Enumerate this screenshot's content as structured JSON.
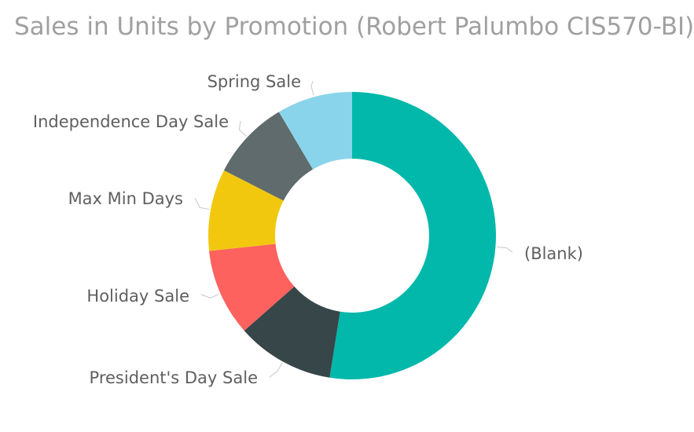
{
  "chart_data": {
    "type": "pie",
    "variant": "donut",
    "title": "Sales in Units by Promotion (Robert Palumbo CIS570-BI)",
    "legend": "none",
    "slices": [
      {
        "label": "(Blank)",
        "value": 52.5,
        "color": "#01B8AA"
      },
      {
        "label": "President's Day Sale",
        "value": 11.0,
        "color": "#374649"
      },
      {
        "label": "Holiday Sale",
        "value": 9.8,
        "color": "#FD625E"
      },
      {
        "label": "Max Min Days",
        "value": 9.2,
        "color": "#F2C80F"
      },
      {
        "label": "Independence Day Sale",
        "value": 9.0,
        "color": "#5F6B6D"
      },
      {
        "label": "Spring Sale",
        "value": 8.5,
        "color": "#8AD4EB"
      }
    ]
  }
}
